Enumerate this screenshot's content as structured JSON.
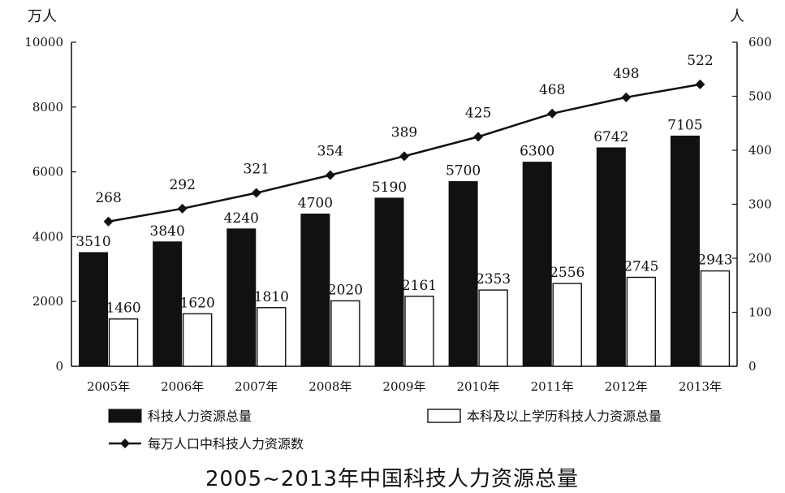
{
  "chart_data": {
    "type": "bar",
    "title": "2005~2013年中国科技人力资源总量",
    "y_left_unit": "万人",
    "y_right_unit": "人",
    "ylim_left": [
      0,
      10000
    ],
    "ylim_right": [
      0,
      600
    ],
    "y_left_ticks": [
      "0",
      "2000",
      "4000",
      "6000",
      "8000",
      "10000"
    ],
    "y_right_ticks": [
      "0",
      "100",
      "200",
      "300",
      "400",
      "500",
      "600"
    ],
    "categories": [
      "2005年",
      "2006年",
      "2007年",
      "2008年",
      "2009年",
      "2010年",
      "2011年",
      "2012年",
      "2013年"
    ],
    "series": [
      {
        "name": "科技人力资源总量",
        "kind": "bar",
        "axis": "left",
        "fill": "#111111",
        "values": [
          3510,
          3840,
          4240,
          4700,
          5190,
          5700,
          6300,
          6742,
          7105
        ]
      },
      {
        "name": "本科及以上学历科技人力资源总量",
        "kind": "bar",
        "axis": "left",
        "fill": "#ffffff",
        "values": [
          1460,
          1620,
          1810,
          2020,
          2161,
          2353,
          2556,
          2745,
          2943
        ]
      },
      {
        "name": "每万人口中科技人力资源数",
        "kind": "line",
        "marker": "diamond",
        "axis": "right",
        "values": [
          268,
          292,
          321,
          354,
          389,
          425,
          468,
          498,
          522
        ]
      }
    ],
    "grid": false,
    "legend_position": "bottom"
  }
}
